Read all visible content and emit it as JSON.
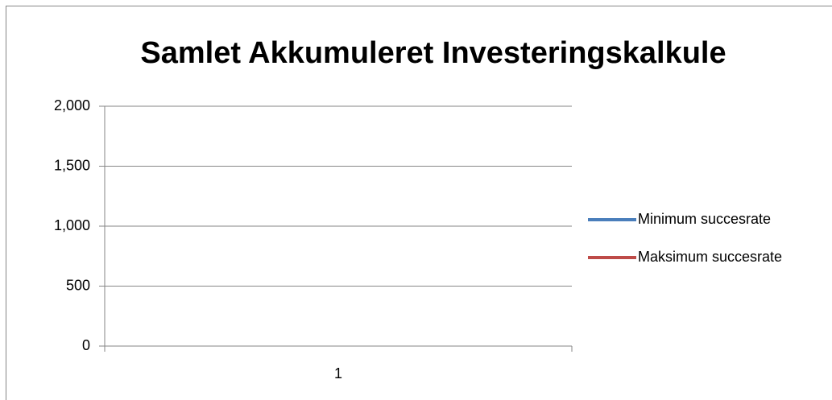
{
  "chart_data": {
    "type": "line",
    "title": "Samlet Akkumuleret Investeringskalkule",
    "categories": [
      "1"
    ],
    "series": [
      {
        "name": "Minimum succesrate",
        "color": "#4a7ebb",
        "values": [
          null
        ]
      },
      {
        "name": "Maksimum succesrate",
        "color": "#be4b48",
        "values": [
          null
        ]
      }
    ],
    "ylim": [
      0,
      2000
    ],
    "yticks": [
      0,
      500,
      {
        "value": 1000,
        "label": "1,000"
      },
      {
        "value": 1500,
        "label": "1,500"
      },
      {
        "value": 2000,
        "label": "2,000"
      }
    ],
    "grid": true,
    "legend": "right"
  }
}
